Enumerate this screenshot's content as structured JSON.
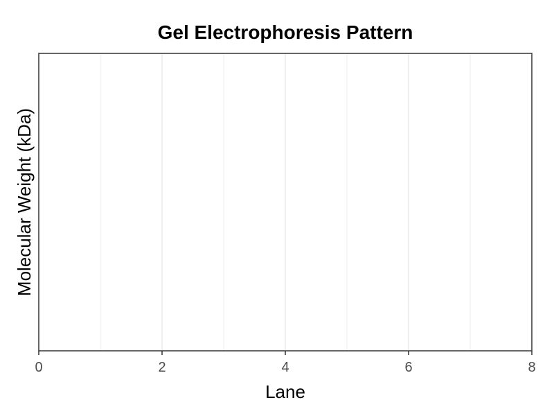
{
  "chart_data": {
    "type": "scatter",
    "title": "Gel Electrophoresis Pattern",
    "xlabel": "Lane",
    "ylabel": "Molecular Weight (kDa)",
    "xlim": [
      0,
      8
    ],
    "x_ticks": [
      0,
      2,
      4,
      6,
      8
    ],
    "x_tick_labels": [
      "0",
      "2",
      "4",
      "6",
      "8"
    ],
    "x_minor_ticks": [
      1,
      3,
      5,
      7
    ],
    "y_tick_labels": [],
    "grid": true,
    "series": [],
    "colors": {
      "background": "#ffffff",
      "grid": "#dcdcdc",
      "axis": "#333333",
      "tick_label": "#4d4d4d",
      "text": "#000000"
    }
  }
}
